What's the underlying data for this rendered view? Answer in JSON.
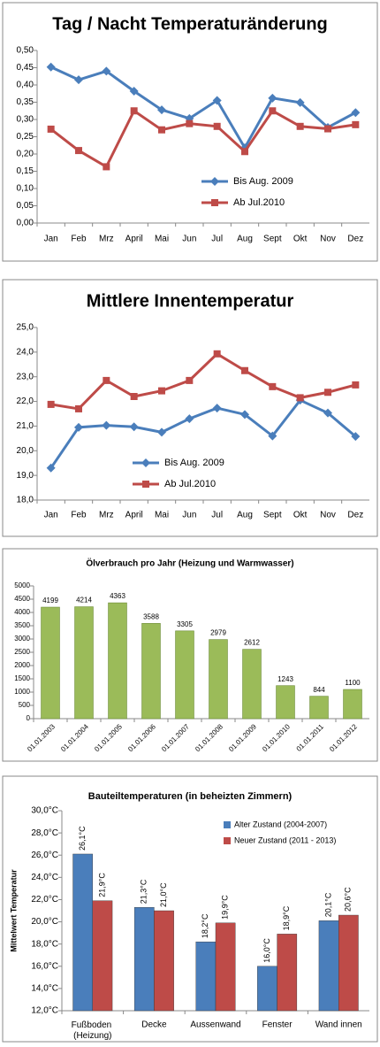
{
  "chart_data": [
    {
      "type": "line",
      "title": "Tag / Nacht Temperaturänderung",
      "categories": [
        "Jan",
        "Feb",
        "Mrz",
        "April",
        "Mai",
        "Jun",
        "Jul",
        "Aug",
        "Sept",
        "Okt",
        "Nov",
        "Dez"
      ],
      "series": [
        {
          "name": "Bis Aug. 2009",
          "color": "#4a7ebb",
          "marker": "diamond",
          "values": [
            0.452,
            0.415,
            0.44,
            0.382,
            0.328,
            0.303,
            0.355,
            0.218,
            0.362,
            0.349,
            0.277,
            0.32
          ]
        },
        {
          "name": "Ab Jul.2010",
          "color": "#be4b48",
          "marker": "square",
          "values": [
            0.272,
            0.21,
            0.163,
            0.325,
            0.27,
            0.288,
            0.28,
            0.207,
            0.325,
            0.28,
            0.273,
            0.285
          ]
        }
      ],
      "ylim": [
        0,
        0.5
      ],
      "yticks": [
        {
          "value": 0,
          "label": "0,00"
        },
        {
          "value": 0.05,
          "label": "0,05"
        },
        {
          "value": 0.1,
          "label": "0,10"
        },
        {
          "value": 0.15,
          "label": "0,15"
        },
        {
          "value": 0.2,
          "label": "0,20"
        },
        {
          "value": 0.25,
          "label": "0,25"
        },
        {
          "value": 0.3,
          "label": "0,30"
        },
        {
          "value": 0.35,
          "label": "0,35"
        },
        {
          "value": 0.4,
          "label": "0,40"
        },
        {
          "value": 0.45,
          "label": "0,45"
        },
        {
          "value": 0.5,
          "label": "0,50"
        }
      ],
      "grid": false,
      "legend": "lower right"
    },
    {
      "type": "line",
      "title": "Mittlere Innentemperatur",
      "categories": [
        "Jan",
        "Feb",
        "Mrz",
        "April",
        "Mai",
        "Jun",
        "Jul",
        "Aug",
        "Sept",
        "Okt",
        "Nov",
        "Dez"
      ],
      "series": [
        {
          "name": "Bis Aug. 2009",
          "color": "#4a7ebb",
          "marker": "diamond",
          "values": [
            19.3,
            20.95,
            21.03,
            20.97,
            20.75,
            21.3,
            21.73,
            21.47,
            20.6,
            22.05,
            21.53,
            20.58
          ]
        },
        {
          "name": "Ab Jul.2010",
          "color": "#be4b48",
          "marker": "square",
          "values": [
            21.88,
            21.7,
            22.85,
            22.2,
            22.43,
            22.85,
            23.93,
            23.25,
            22.6,
            22.15,
            22.37,
            22.67
          ]
        }
      ],
      "ylim": [
        18,
        25
      ],
      "yticks": [
        {
          "value": 18,
          "label": "18,0"
        },
        {
          "value": 19,
          "label": "19,0"
        },
        {
          "value": 20,
          "label": "20,0"
        },
        {
          "value": 21,
          "label": "21,0"
        },
        {
          "value": 22,
          "label": "22,0"
        },
        {
          "value": 23,
          "label": "23,0"
        },
        {
          "value": 24,
          "label": "24,0"
        },
        {
          "value": 25,
          "label": "25,0"
        }
      ],
      "grid": false,
      "legend": "lower center"
    },
    {
      "type": "bar",
      "title": "Ölverbrauch pro Jahr (Heizung und Warmwasser)",
      "categories": [
        "01.01.2003",
        "01.01.2004",
        "01.01.2005",
        "01.01.2006",
        "01.01.2007",
        "01.01.2008",
        "01.01.2009",
        "01.01.2010",
        "01.01.2011",
        "01.01.2012"
      ],
      "values": [
        4199,
        4214,
        4363,
        3588,
        3305,
        2979,
        2612,
        1243,
        844,
        1100
      ],
      "color": "#9bbb59",
      "ylim": [
        0,
        5000
      ],
      "yticks": [
        0,
        500,
        1000,
        1500,
        2000,
        2500,
        3000,
        3500,
        4000,
        4500,
        5000
      ],
      "grid": false
    },
    {
      "type": "bar",
      "title": "Bauteiltemperaturen (in beheizten Zimmern)",
      "y_label": "Mittelwert Temperatur",
      "categories": [
        "Fußboden (Heizung)",
        "Decke",
        "Aussenwand",
        "Fenster",
        "Wand innen"
      ],
      "series": [
        {
          "name": "Alter Zustand (2004-2007)",
          "color": "#4a7ebb",
          "values": [
            26.1,
            21.3,
            18.2,
            16.0,
            20.1
          ],
          "value_labels": [
            "26,1°C",
            "21,3°C",
            "18,2°C",
            "16,0°C",
            "20,1°C"
          ]
        },
        {
          "name": "Neuer Zustand (2011 - 2013)",
          "color": "#be4b48",
          "values": [
            21.9,
            21.0,
            19.9,
            18.9,
            20.6
          ],
          "value_labels": [
            "21,9°C",
            "21,0°C",
            "19,9°C",
            "18,9°C",
            "20,6°C"
          ]
        }
      ],
      "ylim": [
        12,
        30
      ],
      "yticks": [
        {
          "value": 12,
          "label": "12,0°C"
        },
        {
          "value": 14,
          "label": "14,0°C"
        },
        {
          "value": 16,
          "label": "16,0°C"
        },
        {
          "value": 18,
          "label": "18,0°C"
        },
        {
          "value": 20,
          "label": "20,0°C"
        },
        {
          "value": 22,
          "label": "22,0°C"
        },
        {
          "value": 24,
          "label": "24,0°C"
        },
        {
          "value": 26,
          "label": "26,0°C"
        },
        {
          "value": 28,
          "label": "28,0°C"
        },
        {
          "value": 30,
          "label": "30,0°C"
        }
      ],
      "grid": false,
      "legend": "upper right"
    }
  ]
}
